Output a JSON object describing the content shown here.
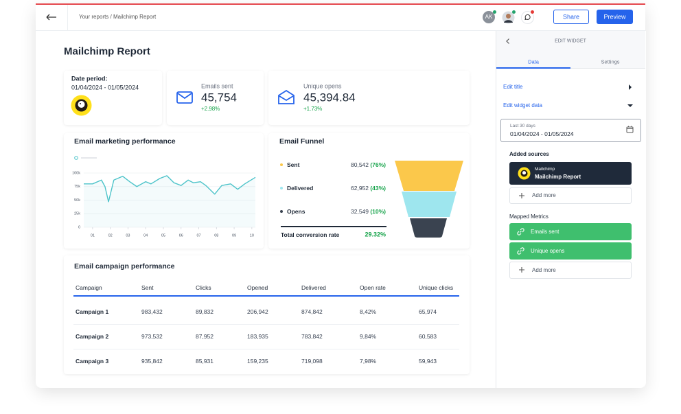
{
  "header": {
    "breadcrumb": "Your reports / Mailchimp Report",
    "avatar": "AK",
    "share": "Share",
    "preview": "Preview"
  },
  "report": {
    "title": "Mailchimp Report",
    "date_card": {
      "label": "Date period:",
      "range": "01/04/2024 - 01/05/2024"
    },
    "kpis": [
      {
        "label": "Emails sent",
        "value": "45,754",
        "change": "+2.98%"
      },
      {
        "label": "Unique opens",
        "value": "45,394.84",
        "change": "+1.73%"
      }
    ],
    "line_chart": {
      "type": "line",
      "title": "Email marketing performance",
      "color": "#4cc3c9",
      "x": [
        0.5,
        1,
        1.5,
        1.7,
        1.9,
        2.2,
        2.7,
        3.1,
        3.5,
        4,
        4.3,
        4.8,
        5.2,
        5.6,
        6,
        6.4,
        6.7,
        7.1,
        7.4,
        7.9,
        8.3,
        8.8,
        9.2,
        9.6,
        10.2
      ],
      "values": [
        80000,
        80000,
        87000,
        75000,
        47000,
        87000,
        94000,
        84000,
        75000,
        84000,
        80000,
        90000,
        95000,
        82000,
        77000,
        87000,
        82000,
        84000,
        77000,
        61000,
        77000,
        80000,
        70000,
        80000,
        92000
      ],
      "xlim": [
        0.5,
        10.2
      ],
      "xticks": [
        {
          "value": 1,
          "label": "01"
        },
        {
          "value": 2,
          "label": "02"
        },
        {
          "value": 3,
          "label": "03"
        },
        {
          "value": 4,
          "label": "04"
        },
        {
          "value": 5,
          "label": "05"
        },
        {
          "value": 6,
          "label": "06"
        },
        {
          "value": 7,
          "label": "07"
        },
        {
          "value": 8,
          "label": "08"
        },
        {
          "value": 9,
          "label": "09"
        },
        {
          "value": 10,
          "label": "10"
        }
      ],
      "ylim": [
        0,
        100000
      ],
      "yticks": [
        0,
        {
          "value": 25000,
          "label": "25k"
        },
        {
          "value": 50000,
          "label": "50k"
        },
        {
          "value": 75000,
          "label": "75k"
        },
        {
          "value": 100000,
          "label": "100k"
        }
      ],
      "grid": true
    },
    "funnel": {
      "title": "Email Funnel",
      "stages": [
        {
          "name": "Sent",
          "value": "80,542",
          "percent": "(76%)",
          "color": "#fbc84b"
        },
        {
          "name": "Delivered",
          "value": "62,952",
          "percent": "(43%)",
          "color": "#9ee6ee"
        },
        {
          "name": "Opens",
          "value": "32,549",
          "percent": "(10%)",
          "color": "#3a4350"
        }
      ],
      "total_label": "Total conversion rate",
      "total": "29.32%"
    },
    "table": {
      "title": "Email campaign performance",
      "columns": [
        "Campaign",
        "Sent",
        "Clicks",
        "Opened",
        "Delivered",
        "Open rate",
        "Unique clicks"
      ],
      "rows": [
        [
          "Campaign 1",
          "983,432",
          "89,832",
          "206,942",
          "874,842",
          "8,42%",
          "65,974"
        ],
        [
          "Campaign 2",
          "973,532",
          "87,952",
          "183,935",
          "783,842",
          "9,84%",
          "60,583"
        ],
        [
          "Campaign 3",
          "935,842",
          "85,931",
          "159,235",
          "719,098",
          "7,98%",
          "59,943"
        ]
      ]
    }
  },
  "panel": {
    "title": "EDIT WIDGET",
    "tabs": [
      "Data",
      "Settings"
    ],
    "edit_title": "Edit title",
    "edit_data": "Edit widget data",
    "date_hint": "Last 30 days",
    "date_range": "01/04/2024 - 01/05/2024",
    "sources_label": "Added sources",
    "source": {
      "provider": "Mailchimp",
      "name": "Mailchimp Report"
    },
    "add_source": "Add more",
    "metrics_label": "Mapped Metrics",
    "metrics": [
      "Emails sent",
      "Unique opens"
    ],
    "add_metric": "Add more"
  }
}
